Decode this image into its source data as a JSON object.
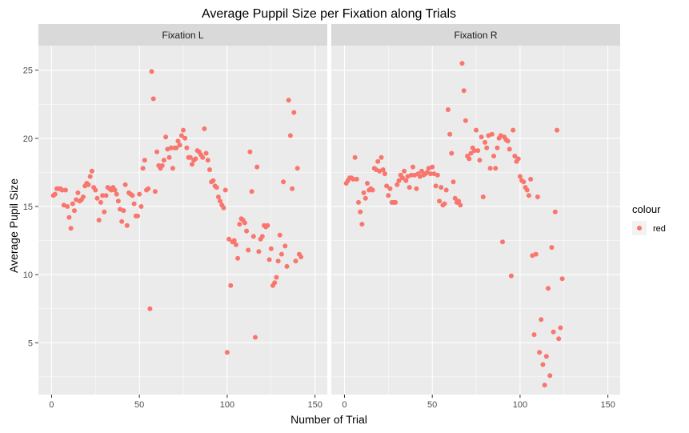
{
  "chart_data": {
    "type": "scatter",
    "title": "Average Puppil Size per Fixation along Trials",
    "xlabel": "Number of Trial",
    "ylabel": "Average Pupil Size",
    "xlim": [
      -7.5,
      157
    ],
    "ylim": [
      1.2,
      26.8
    ],
    "x_ticks": [
      0,
      50,
      100,
      150
    ],
    "y_ticks": [
      5,
      10,
      15,
      20,
      25
    ],
    "grid": true,
    "legend": {
      "title": "colour",
      "entries": [
        {
          "label": "red",
          "color": "#F8766D"
        }
      ],
      "position": "right"
    },
    "colors": {
      "panel": "#EBEBEB",
      "strip": "#D9D9D9",
      "grid": "#FFFFFF",
      "point": "#F8766D"
    },
    "panels": [
      {
        "strip": "Fixation L",
        "points": [
          [
            1,
            15.8
          ],
          [
            2,
            15.9
          ],
          [
            3,
            16.3
          ],
          [
            4,
            16.3
          ],
          [
            5,
            16.3
          ],
          [
            6,
            16.2
          ],
          [
            7,
            15.1
          ],
          [
            8,
            16.2
          ],
          [
            9,
            15.0
          ],
          [
            10,
            14.2
          ],
          [
            11,
            13.4
          ],
          [
            12,
            15.2
          ],
          [
            13,
            14.7
          ],
          [
            14,
            15.5
          ],
          [
            15,
            16.0
          ],
          [
            16,
            15.4
          ],
          [
            17,
            15.5
          ],
          [
            18,
            15.7
          ],
          [
            19,
            16.5
          ],
          [
            20,
            16.7
          ],
          [
            21,
            16.6
          ],
          [
            22,
            17.2
          ],
          [
            23,
            17.6
          ],
          [
            24,
            16.4
          ],
          [
            25,
            16.2
          ],
          [
            26,
            15.6
          ],
          [
            27,
            14.0
          ],
          [
            28,
            15.3
          ],
          [
            29,
            15.8
          ],
          [
            30,
            14.6
          ],
          [
            31,
            15.8
          ],
          [
            32,
            16.4
          ],
          [
            33,
            16.3
          ],
          [
            34,
            16.2
          ],
          [
            35,
            16.4
          ],
          [
            36,
            16.2
          ],
          [
            37,
            15.9
          ],
          [
            38,
            15.4
          ],
          [
            39,
            14.8
          ],
          [
            40,
            13.9
          ],
          [
            41,
            14.7
          ],
          [
            42,
            16.6
          ],
          [
            43,
            13.6
          ],
          [
            44,
            16.0
          ],
          [
            45,
            15.9
          ],
          [
            46,
            15.8
          ],
          [
            47,
            15.2
          ],
          [
            48,
            14.3
          ],
          [
            49,
            14.3
          ],
          [
            50,
            15.9
          ],
          [
            51,
            15.0
          ],
          [
            52,
            17.8
          ],
          [
            53,
            18.4
          ],
          [
            54,
            16.2
          ],
          [
            55,
            16.3
          ],
          [
            56,
            7.5
          ],
          [
            57,
            24.9
          ],
          [
            58,
            22.9
          ],
          [
            59,
            16.1
          ],
          [
            60,
            19.0
          ],
          [
            61,
            18.0
          ],
          [
            62,
            17.8
          ],
          [
            63,
            18.0
          ],
          [
            64,
            18.4
          ],
          [
            65,
            20.1
          ],
          [
            66,
            19.2
          ],
          [
            67,
            18.6
          ],
          [
            68,
            19.3
          ],
          [
            69,
            17.8
          ],
          [
            70,
            19.3
          ],
          [
            71,
            19.3
          ],
          [
            72,
            19.8
          ],
          [
            73,
            19.5
          ],
          [
            74,
            20.2
          ],
          [
            75,
            20.6
          ],
          [
            76,
            20.0
          ],
          [
            77,
            19.3
          ],
          [
            78,
            18.6
          ],
          [
            79,
            18.6
          ],
          [
            80,
            18.1
          ],
          [
            81,
            18.4
          ],
          [
            82,
            18.5
          ],
          [
            83,
            19.1
          ],
          [
            84,
            19.0
          ],
          [
            85,
            18.8
          ],
          [
            86,
            18.6
          ],
          [
            87,
            20.7
          ],
          [
            88,
            18.9
          ],
          [
            89,
            18.4
          ],
          [
            90,
            17.7
          ],
          [
            91,
            16.8
          ],
          [
            92,
            16.9
          ],
          [
            93,
            16.5
          ],
          [
            94,
            16.4
          ],
          [
            95,
            15.7
          ],
          [
            96,
            15.4
          ],
          [
            97,
            15.1
          ],
          [
            98,
            14.9
          ],
          [
            99,
            16.2
          ],
          [
            100,
            4.3
          ],
          [
            101,
            12.6
          ],
          [
            102,
            9.2
          ],
          [
            103,
            12.4
          ],
          [
            104,
            12.5
          ],
          [
            105,
            12.2
          ],
          [
            106,
            11.2
          ],
          [
            107,
            13.7
          ],
          [
            108,
            14.1
          ],
          [
            109,
            14.0
          ],
          [
            110,
            13.8
          ],
          [
            111,
            13.2
          ],
          [
            112,
            11.8
          ],
          [
            113,
            19.0
          ],
          [
            114,
            16.1
          ],
          [
            115,
            12.8
          ],
          [
            116,
            5.4
          ],
          [
            117,
            17.9
          ],
          [
            118,
            11.7
          ],
          [
            119,
            12.6
          ],
          [
            120,
            12.8
          ],
          [
            121,
            13.6
          ],
          [
            122,
            13.5
          ],
          [
            123,
            13.6
          ],
          [
            124,
            11.1
          ],
          [
            125,
            11.9
          ],
          [
            126,
            9.2
          ],
          [
            127,
            9.4
          ],
          [
            128,
            9.8
          ],
          [
            129,
            11.0
          ],
          [
            130,
            12.9
          ],
          [
            131,
            11.5
          ],
          [
            132,
            16.8
          ],
          [
            133,
            12.1
          ],
          [
            134,
            10.6
          ],
          [
            135,
            22.8
          ],
          [
            136,
            20.2
          ],
          [
            137,
            16.3
          ],
          [
            138,
            21.9
          ],
          [
            139,
            11.0
          ],
          [
            140,
            17.8
          ],
          [
            141,
            11.5
          ],
          [
            142,
            11.3
          ]
        ]
      },
      {
        "strip": "Fixation R",
        "points": [
          [
            1,
            16.7
          ],
          [
            2,
            16.9
          ],
          [
            3,
            17.1
          ],
          [
            4,
            17.1
          ],
          [
            5,
            17.0
          ],
          [
            6,
            18.6
          ],
          [
            7,
            17.0
          ],
          [
            8,
            15.3
          ],
          [
            9,
            14.6
          ],
          [
            10,
            13.7
          ],
          [
            11,
            16.0
          ],
          [
            12,
            15.6
          ],
          [
            13,
            16.7
          ],
          [
            14,
            16.2
          ],
          [
            15,
            16.3
          ],
          [
            16,
            16.2
          ],
          [
            17,
            17.8
          ],
          [
            18,
            17.7
          ],
          [
            19,
            18.3
          ],
          [
            20,
            17.6
          ],
          [
            21,
            18.6
          ],
          [
            22,
            17.7
          ],
          [
            23,
            17.4
          ],
          [
            24,
            16.5
          ],
          [
            25,
            15.8
          ],
          [
            26,
            16.3
          ],
          [
            27,
            15.3
          ],
          [
            28,
            15.3
          ],
          [
            29,
            15.3
          ],
          [
            30,
            16.6
          ],
          [
            31,
            16.9
          ],
          [
            32,
            17.3
          ],
          [
            33,
            17.1
          ],
          [
            34,
            17.6
          ],
          [
            35,
            16.9
          ],
          [
            36,
            17.2
          ],
          [
            37,
            16.4
          ],
          [
            38,
            17.3
          ],
          [
            39,
            17.9
          ],
          [
            40,
            17.3
          ],
          [
            41,
            16.3
          ],
          [
            42,
            17.4
          ],
          [
            43,
            17.2
          ],
          [
            44,
            17.6
          ],
          [
            45,
            17.3
          ],
          [
            46,
            17.4
          ],
          [
            47,
            17.5
          ],
          [
            48,
            17.8
          ],
          [
            49,
            17.4
          ],
          [
            50,
            17.9
          ],
          [
            51,
            17.4
          ],
          [
            52,
            16.5
          ],
          [
            53,
            17.3
          ],
          [
            54,
            15.4
          ],
          [
            55,
            16.4
          ],
          [
            56,
            15.1
          ],
          [
            57,
            15.2
          ],
          [
            58,
            16.2
          ],
          [
            59,
            22.1
          ],
          [
            60,
            20.3
          ],
          [
            61,
            18.9
          ],
          [
            62,
            16.8
          ],
          [
            63,
            15.6
          ],
          [
            64,
            15.3
          ],
          [
            65,
            15.4
          ],
          [
            66,
            15.1
          ],
          [
            67,
            25.5
          ],
          [
            68,
            23.5
          ],
          [
            69,
            21.3
          ],
          [
            70,
            18.7
          ],
          [
            71,
            18.5
          ],
          [
            72,
            18.9
          ],
          [
            73,
            19.3
          ],
          [
            74,
            19.1
          ],
          [
            75,
            20.6
          ],
          [
            76,
            19.1
          ],
          [
            77,
            18.4
          ],
          [
            78,
            20.1
          ],
          [
            79,
            15.7
          ],
          [
            80,
            19.7
          ],
          [
            81,
            19.3
          ],
          [
            82,
            20.2
          ],
          [
            83,
            17.8
          ],
          [
            84,
            20.3
          ],
          [
            85,
            18.7
          ],
          [
            86,
            17.8
          ],
          [
            87,
            19.3
          ],
          [
            88,
            20.0
          ],
          [
            89,
            20.2
          ],
          [
            90,
            12.4
          ],
          [
            91,
            20.1
          ],
          [
            92,
            19.9
          ],
          [
            93,
            19.8
          ],
          [
            94,
            19.2
          ],
          [
            95,
            9.9
          ],
          [
            96,
            20.6
          ],
          [
            97,
            18.7
          ],
          [
            98,
            18.3
          ],
          [
            99,
            18.5
          ],
          [
            100,
            17.2
          ],
          [
            101,
            16.9
          ],
          [
            102,
            16.8
          ],
          [
            103,
            16.4
          ],
          [
            104,
            16.2
          ],
          [
            105,
            15.8
          ],
          [
            106,
            17.0
          ],
          [
            107,
            11.4
          ],
          [
            108,
            5.6
          ],
          [
            109,
            11.5
          ],
          [
            110,
            15.7
          ],
          [
            111,
            4.3
          ],
          [
            112,
            6.7
          ],
          [
            113,
            3.4
          ],
          [
            114,
            1.9
          ],
          [
            115,
            4.0
          ],
          [
            116,
            9.0
          ],
          [
            117,
            2.6
          ],
          [
            118,
            12.0
          ],
          [
            119,
            5.8
          ],
          [
            120,
            14.6
          ],
          [
            121,
            20.6
          ],
          [
            122,
            5.3
          ],
          [
            123,
            6.1
          ],
          [
            124,
            9.7
          ]
        ]
      }
    ]
  }
}
